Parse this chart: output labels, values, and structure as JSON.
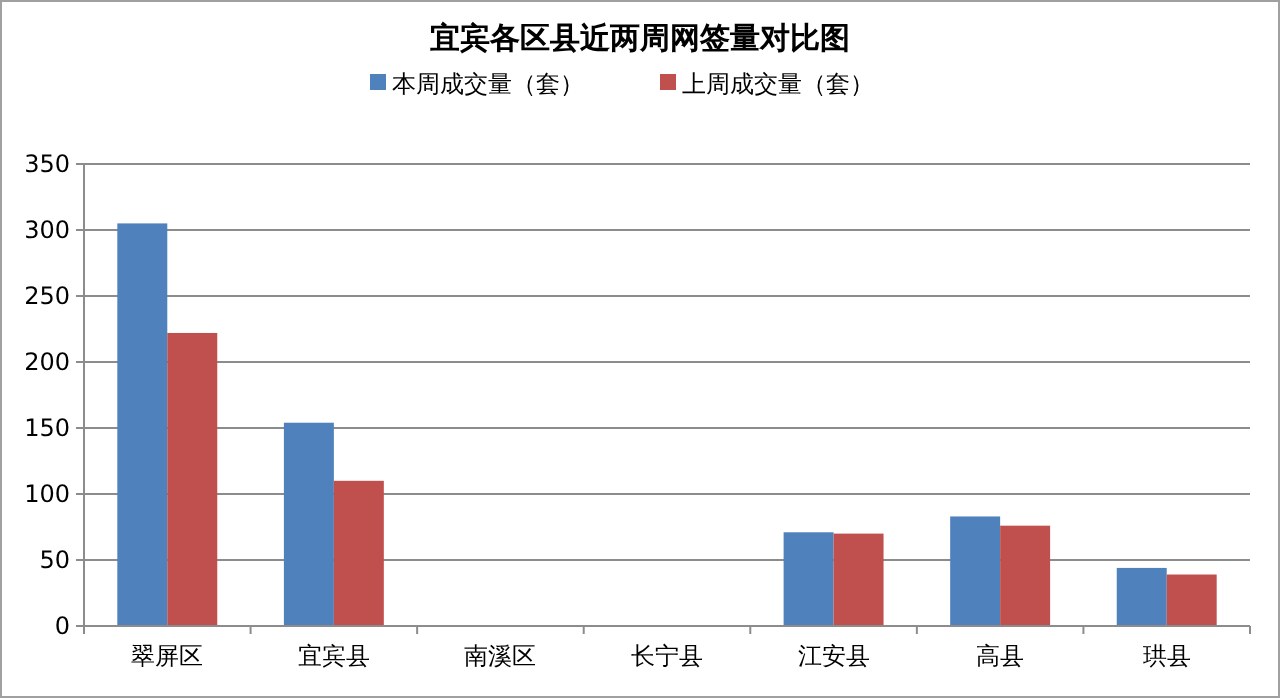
{
  "chart_data": {
    "type": "bar",
    "title": "宜宾各区县近两周网签量对比图",
    "categories": [
      "翠屏区",
      "宜宾县",
      "南溪区",
      "长宁县",
      "江安县",
      "高县",
      "珙县"
    ],
    "series": [
      {
        "name": "本周成交量（套）",
        "color": "#4f81bd",
        "values": [
          305,
          154,
          0,
          0,
          71,
          83,
          44
        ]
      },
      {
        "name": "上周成交量（套）",
        "color": "#c0504d",
        "values": [
          222,
          110,
          0,
          0,
          70,
          76,
          39
        ]
      }
    ],
    "ylim": [
      0,
      350
    ],
    "yticks": [
      0,
      50,
      100,
      150,
      200,
      250,
      300,
      350
    ],
    "grid": "y",
    "legend": "top"
  }
}
